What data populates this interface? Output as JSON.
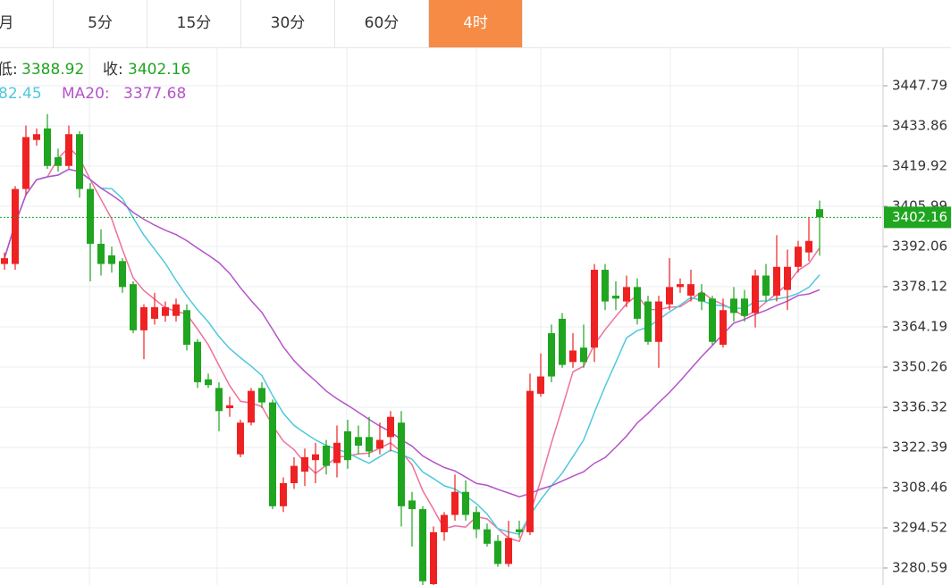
{
  "tabs": {
    "items": [
      "月",
      "5分",
      "15分",
      "30分",
      "60分",
      "4时"
    ],
    "active": 5
  },
  "chart_data": {
    "type": "candlestick",
    "legend": {
      "low_label": "低:",
      "close_label": "收:",
      "ma10_value": "82.45",
      "ma20_label": "MA20:",
      "ma20_value": "3377.68"
    },
    "up_color": "#ee2222",
    "down_color": "#1fa51f",
    "moving_averages": [
      {
        "period": 5,
        "color": "#f0709a"
      },
      {
        "period": 10,
        "color": "#4fc8dc"
      },
      {
        "period": 20,
        "color": "#b553c9"
      }
    ],
    "open": [
      3386,
      3386,
      3412,
      3429,
      3433,
      3423,
      3420,
      3431,
      3412,
      3393,
      3389,
      3387,
      3379,
      3363,
      3367,
      3368,
      3368,
      3370,
      3359,
      3346,
      3343,
      3336,
      3320,
      3331,
      3343,
      3338,
      3302,
      3310,
      3314,
      3318,
      3323,
      3317,
      3328,
      3326,
      3326,
      3322,
      3326,
      3331,
      3304,
      3301,
      3275,
      3293,
      3299,
      3307,
      3300,
      3294,
      3290,
      3282,
      3294,
      3293,
      3341,
      3362,
      3367,
      3352,
      3357,
      3357,
      3384,
      3375,
      3373,
      3378,
      3373,
      3359,
      3372,
      3378,
      3375,
      3376,
      3374,
      3358,
      3374,
      3374,
      3369,
      3382,
      3375,
      3377,
      3385,
      3390,
      3405
    ],
    "high": [
      3390,
      3413,
      3434,
      3433,
      3438,
      3426,
      3434,
      3432,
      3414,
      3398,
      3392,
      3388,
      3380,
      3372,
      3376,
      3373,
      3374,
      3372,
      3360,
      3348,
      3345,
      3340,
      3332,
      3343,
      3345,
      3339,
      3312,
      3319,
      3322,
      3324,
      3325,
      3330,
      3332,
      3330,
      3333,
      3331,
      3335,
      3335,
      3307,
      3302,
      3295,
      3300,
      3313,
      3311,
      3302,
      3296,
      3292,
      3297,
      3297,
      3348,
      3355,
      3365,
      3369,
      3362,
      3365,
      3386,
      3386,
      3380,
      3382,
      3381,
      3375,
      3375,
      3388,
      3381,
      3384,
      3379,
      3375,
      3374,
      3378,
      3377,
      3384,
      3386,
      3396,
      3391,
      3394,
      3402,
      3408
    ],
    "low": [
      3384,
      3384,
      3410,
      3427,
      3419,
      3418,
      3419,
      3409,
      3380,
      3382,
      3383,
      3376,
      3362,
      3353,
      3365,
      3366,
      3366,
      3356,
      3343,
      3343,
      3328,
      3333,
      3319,
      3330,
      3336,
      3301,
      3300,
      3308,
      3309,
      3310,
      3313,
      3312,
      3315,
      3320,
      3319,
      3320,
      3321,
      3295,
      3288,
      3274,
      3274,
      3290,
      3297,
      3297,
      3291,
      3288,
      3281,
      3281,
      3291,
      3292,
      3340,
      3345,
      3350,
      3350,
      3350,
      3352,
      3370,
      3370,
      3371,
      3365,
      3358,
      3350,
      3370,
      3376,
      3373,
      3370,
      3358,
      3357,
      3366,
      3366,
      3364,
      3373,
      3373,
      3370,
      3383,
      3387,
      3388.92
    ],
    "close": [
      3388,
      3412,
      3430,
      3431,
      3420,
      3420,
      3431,
      3412,
      3393,
      3386,
      3386,
      3378,
      3363,
      3371,
      3371,
      3371,
      3372,
      3358,
      3345,
      3344,
      3335,
      3337,
      3331,
      3342,
      3338,
      3302,
      3310,
      3316,
      3319,
      3320,
      3316,
      3324,
      3318,
      3323,
      3321,
      3325,
      3333,
      3302,
      3301,
      3276,
      3293,
      3299,
      3307,
      3299,
      3294,
      3289,
      3282,
      3291,
      3293,
      3342,
      3347,
      3347,
      3351,
      3356,
      3352,
      3384,
      3373,
      3374,
      3378,
      3367,
      3359,
      3373,
      3378,
      3379,
      3379,
      3373,
      3359,
      3370,
      3369,
      3368,
      3382,
      3375,
      3385,
      3385,
      3392,
      3394,
      3402.16
    ],
    "ylim": [
      3274.7,
      3460.8
    ],
    "yticks": [
      3447.79,
      3433.86,
      3419.92,
      3405.99,
      3392.06,
      3378.12,
      3364.19,
      3350.26,
      3336.32,
      3322.39,
      3308.46,
      3294.52,
      3280.59
    ],
    "grid": true
  }
}
